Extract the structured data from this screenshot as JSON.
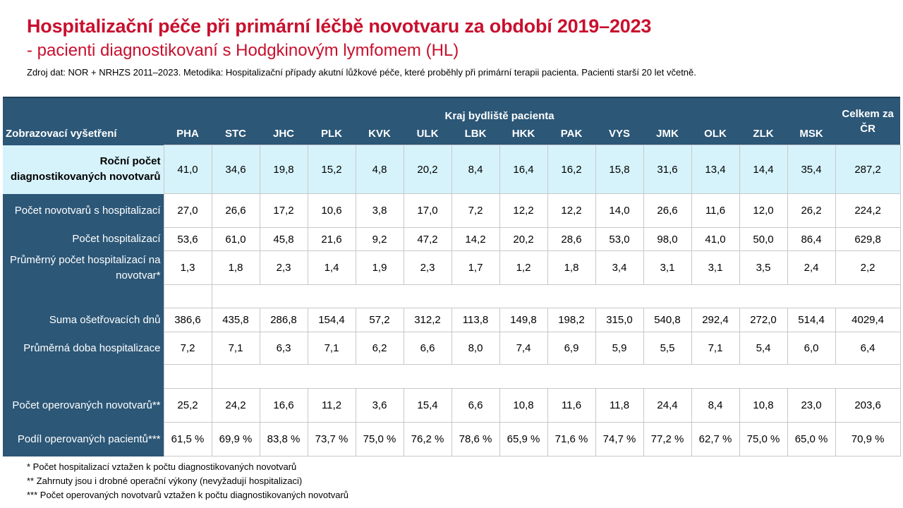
{
  "title": "Hospitalizační péče při primární léčbě novotvaru za období 2019–2023",
  "subtitle": "- pacienti diagnostikovaní s Hodgkinovým lymfomem (HL)",
  "source": "Zdroj dat: NOR + NRHZS 2011–2023. Metodika: Hospitalizační případy akutní lůžkové péče, které proběhly při primární terapii pacienta. Pacienti starší 20 let včetně.",
  "table": {
    "group_header": "Kraj bydliště pacienta",
    "label_header": "Zobrazovací vyšetření",
    "total_header": "Celkem za ČR",
    "regions": [
      "PHA",
      "STC",
      "JHC",
      "PLK",
      "KVK",
      "ULK",
      "LBK",
      "HKK",
      "PAK",
      "VYS",
      "JMK",
      "OLK",
      "ZLK",
      "MSK"
    ],
    "rows": {
      "annual": {
        "label": "Roční počet diagnostikovaných novotvarů",
        "values": [
          "41,0",
          "34,6",
          "19,8",
          "15,2",
          "4,8",
          "20,2",
          "8,4",
          "16,4",
          "16,2",
          "15,8",
          "31,6",
          "13,4",
          "14,4",
          "35,4"
        ],
        "total": "287,2"
      },
      "with_hosp": {
        "label": "Počet novotvarů s hospitalizací",
        "values": [
          "27,0",
          "26,6",
          "17,2",
          "10,6",
          "3,8",
          "17,0",
          "7,2",
          "12,2",
          "12,2",
          "14,0",
          "26,6",
          "11,6",
          "12,0",
          "26,2"
        ],
        "total": "224,2"
      },
      "hosp_count": {
        "label": "Počet hospitalizací",
        "values": [
          "53,6",
          "61,0",
          "45,8",
          "21,6",
          "9,2",
          "47,2",
          "14,2",
          "20,2",
          "28,6",
          "53,0",
          "98,0",
          "41,0",
          "50,0",
          "86,4"
        ],
        "total": "629,8"
      },
      "avg_hosp": {
        "label": "Průměrný počet hospitalizací na novotvar*",
        "values": [
          "1,3",
          "1,8",
          "2,3",
          "1,4",
          "1,9",
          "2,3",
          "1,7",
          "1,2",
          "1,8",
          "3,4",
          "3,1",
          "3,1",
          "3,5",
          "2,4"
        ],
        "total": "2,2"
      },
      "care_days": {
        "label": "Suma ošetřovacích dnů",
        "values": [
          "386,6",
          "435,8",
          "286,8",
          "154,4",
          "57,2",
          "312,2",
          "113,8",
          "149,8",
          "198,2",
          "315,0",
          "540,8",
          "292,4",
          "272,0",
          "514,4"
        ],
        "total": "4029,4"
      },
      "avg_length": {
        "label": "Průměrná doba hospitalizace",
        "values": [
          "7,2",
          "7,1",
          "6,3",
          "7,1",
          "6,2",
          "6,6",
          "8,0",
          "7,4",
          "6,9",
          "5,9",
          "5,5",
          "7,1",
          "5,4",
          "6,0"
        ],
        "total": "6,4"
      },
      "operated": {
        "label": "Počet operovaných novotvarů**",
        "values": [
          "25,2",
          "24,2",
          "16,6",
          "11,2",
          "3,6",
          "15,4",
          "6,6",
          "10,8",
          "11,6",
          "11,8",
          "24,4",
          "8,4",
          "10,8",
          "23,0"
        ],
        "total": "203,6"
      },
      "operated_share": {
        "label": "Podíl operovaných pacientů***",
        "values": [
          "61,5 %",
          "69,9 %",
          "83,8 %",
          "73,7 %",
          "75,0 %",
          "76,2 %",
          "78,6 %",
          "65,9 %",
          "71,6 %",
          "74,7 %",
          "77,2 %",
          "62,7 %",
          "75,0 %",
          "65,0 %"
        ],
        "total": "70,9 %"
      }
    }
  },
  "footnotes": [
    "* Počet hospitalizací vztažen k počtu diagnostikovaných novotvarů",
    "** Zahrnuty jsou i drobné operační výkony (nevyžadují hospitalizaci)",
    "*** Počet operovaných novotvarů vztažen k počtu diagnostikovaných novotvarů"
  ],
  "colors": {
    "accent": "#c8102e",
    "header": "#2c5777",
    "highlight": "#d6f3fb"
  }
}
